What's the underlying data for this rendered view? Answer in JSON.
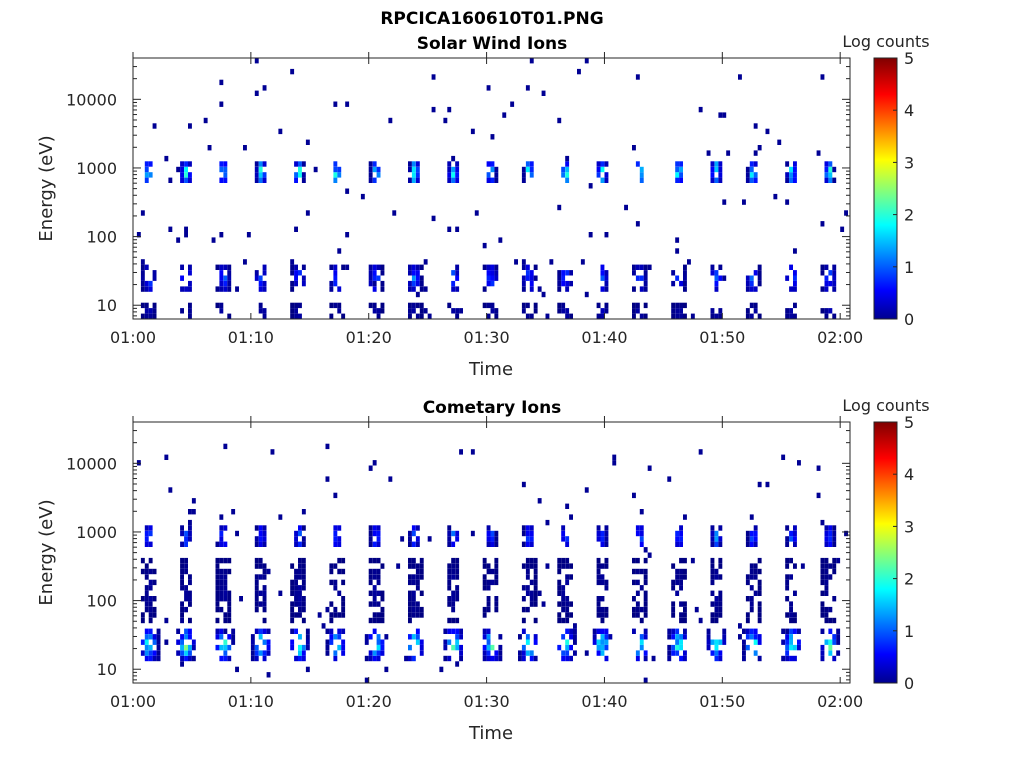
{
  "figure_title": "RPCICA160610T01.PNG",
  "colors": {
    "axis": "#262626",
    "colormap": "jet"
  },
  "chart_data": [
    {
      "type": "heatmap",
      "title": "Solar Wind Ions",
      "xlabel": "Time",
      "ylabel": "Energy (eV)",
      "x_tick_labels": [
        "01:00",
        "01:10",
        "01:20",
        "01:30",
        "01:40",
        "01:50",
        "02:00"
      ],
      "x_range": [
        "01:00:00",
        "02:00:50"
      ],
      "y_scale": "log",
      "y_tick_labels": [
        "10",
        "100",
        "1000",
        "10000"
      ],
      "y_range": [
        6.3,
        40000
      ],
      "colorbar": {
        "label": "Log counts",
        "range": [
          0,
          5
        ],
        "tick_labels": [
          "0",
          "1",
          "2",
          "3",
          "4",
          "5"
        ]
      },
      "pulse_times": [
        "01:01:22",
        "01:04:30",
        "01:07:42",
        "01:10:54",
        "01:14:06",
        "01:17:18",
        "01:20:36",
        "01:23:54",
        "01:27:12",
        "01:30:24",
        "01:33:36",
        "01:36:42",
        "01:39:48",
        "01:43:00",
        "01:46:18",
        "01:49:30",
        "01:52:36",
        "01:55:54",
        "01:59:06"
      ],
      "bands": [
        {
          "energy_eV": [
            550,
            1300
          ],
          "peak_log_counts": 2.8
        },
        {
          "energy_eV": [
            15,
            40
          ],
          "peak_log_counts": 1.3
        },
        {
          "energy_eV": [
            6.3,
            10
          ],
          "peak_log_counts": 0.3
        }
      ],
      "background_scatter": {
        "energy_eV": [
          6.3,
          40000
        ],
        "log_counts": 0.1
      }
    },
    {
      "type": "heatmap",
      "title": "Cometary Ions",
      "xlabel": "Time",
      "ylabel": "Energy (eV)",
      "x_tick_labels": [
        "01:00",
        "01:10",
        "01:20",
        "01:30",
        "01:40",
        "01:50",
        "02:00"
      ],
      "x_range": [
        "01:00:00",
        "02:00:50"
      ],
      "y_scale": "log",
      "y_tick_labels": [
        "10",
        "100",
        "1000",
        "10000"
      ],
      "y_range": [
        6.3,
        40000
      ],
      "colorbar": {
        "label": "Log counts",
        "range": [
          0,
          5
        ],
        "tick_labels": [
          "0",
          "1",
          "2",
          "3",
          "4",
          "5"
        ]
      },
      "pulse_times": [
        "01:01:22",
        "01:04:30",
        "01:07:42",
        "01:10:54",
        "01:14:06",
        "01:17:18",
        "01:20:36",
        "01:23:54",
        "01:27:12",
        "01:30:24",
        "01:33:36",
        "01:36:42",
        "01:39:48",
        "01:43:00",
        "01:46:18",
        "01:49:30",
        "01:52:36",
        "01:55:54",
        "01:59:06"
      ],
      "bands": [
        {
          "energy_eV": [
            550,
            1300
          ],
          "peak_log_counts": 1.5
        },
        {
          "energy_eV": [
            50,
            400
          ],
          "peak_log_counts": 0.2
        },
        {
          "energy_eV": [
            13,
            40
          ],
          "peak_log_counts": 2.6
        }
      ],
      "background_scatter": {
        "energy_eV": [
          6.3,
          20000
        ],
        "log_counts": 0.1
      }
    }
  ]
}
